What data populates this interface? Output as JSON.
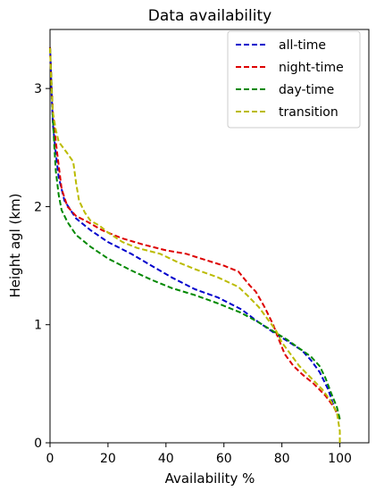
{
  "chart_data": {
    "type": "line",
    "title": "Data availability",
    "xlabel": "Availability %",
    "ylabel": "Height agl (km)",
    "xlim": [
      0,
      110
    ],
    "ylim": [
      0,
      3.5
    ],
    "xticks": [
      0,
      20,
      40,
      60,
      80,
      100
    ],
    "yticks": [
      0,
      1,
      2,
      3
    ],
    "grid": false,
    "legend_position": "top-right",
    "series": [
      {
        "name": "all-time",
        "color": "#0000cc",
        "points": [
          [
            100,
            0.2
          ],
          [
            98,
            0.3
          ],
          [
            96,
            0.45
          ],
          [
            93,
            0.6
          ],
          [
            90,
            0.7
          ],
          [
            87,
            0.78
          ],
          [
            82,
            0.86
          ],
          [
            78,
            0.92
          ],
          [
            72,
            1.02
          ],
          [
            66,
            1.13
          ],
          [
            58,
            1.23
          ],
          [
            50,
            1.3
          ],
          [
            42,
            1.4
          ],
          [
            35,
            1.5
          ],
          [
            28,
            1.6
          ],
          [
            20,
            1.7
          ],
          [
            14,
            1.8
          ],
          [
            9,
            1.9
          ],
          [
            5,
            2.05
          ],
          [
            3,
            2.25
          ],
          [
            2,
            2.45
          ],
          [
            1,
            2.7
          ],
          [
            0.5,
            3.0
          ],
          [
            0.2,
            3.25
          ],
          [
            0,
            3.35
          ]
        ]
      },
      {
        "name": "night-time",
        "color": "#dd0000",
        "points": [
          [
            100,
            0.2
          ],
          [
            98,
            0.3
          ],
          [
            95,
            0.4
          ],
          [
            91,
            0.5
          ],
          [
            87,
            0.58
          ],
          [
            84,
            0.65
          ],
          [
            81,
            0.75
          ],
          [
            79,
            0.87
          ],
          [
            77,
            1.0
          ],
          [
            74,
            1.15
          ],
          [
            71,
            1.28
          ],
          [
            69,
            1.33
          ],
          [
            65,
            1.45
          ],
          [
            60,
            1.5
          ],
          [
            52,
            1.56
          ],
          [
            47,
            1.6
          ],
          [
            40,
            1.63
          ],
          [
            32,
            1.68
          ],
          [
            25,
            1.73
          ],
          [
            18,
            1.8
          ],
          [
            13,
            1.87
          ],
          [
            9,
            1.92
          ],
          [
            6,
            2.0
          ],
          [
            4,
            2.15
          ],
          [
            3,
            2.35
          ],
          [
            2,
            2.55
          ],
          [
            1,
            2.8
          ],
          [
            0.5,
            3.05
          ],
          [
            0,
            3.35
          ]
        ]
      },
      {
        "name": "day-time",
        "color": "#008800",
        "points": [
          [
            100,
            0.2
          ],
          [
            99,
            0.3
          ],
          [
            97,
            0.42
          ],
          [
            95,
            0.55
          ],
          [
            93,
            0.65
          ],
          [
            90,
            0.73
          ],
          [
            86,
            0.8
          ],
          [
            82,
            0.87
          ],
          [
            78,
            0.93
          ],
          [
            72,
            1.02
          ],
          [
            66,
            1.1
          ],
          [
            58,
            1.18
          ],
          [
            50,
            1.25
          ],
          [
            42,
            1.31
          ],
          [
            35,
            1.38
          ],
          [
            28,
            1.46
          ],
          [
            20,
            1.56
          ],
          [
            14,
            1.66
          ],
          [
            9,
            1.76
          ],
          [
            6,
            1.87
          ],
          [
            4,
            1.97
          ],
          [
            3,
            2.1
          ],
          [
            2,
            2.3
          ],
          [
            1.5,
            2.5
          ],
          [
            1,
            2.75
          ],
          [
            0.5,
            3.05
          ],
          [
            0,
            3.35
          ]
        ]
      },
      {
        "name": "transition",
        "color": "#bbbb00",
        "points": [
          [
            100,
            0.0
          ],
          [
            100,
            0.1
          ],
          [
            99,
            0.25
          ],
          [
            97,
            0.35
          ],
          [
            94,
            0.45
          ],
          [
            90,
            0.55
          ],
          [
            86,
            0.65
          ],
          [
            83,
            0.75
          ],
          [
            80,
            0.85
          ],
          [
            78,
            0.95
          ],
          [
            75,
            1.05
          ],
          [
            72,
            1.15
          ],
          [
            68,
            1.25
          ],
          [
            65,
            1.32
          ],
          [
            58,
            1.4
          ],
          [
            50,
            1.47
          ],
          [
            44,
            1.53
          ],
          [
            38,
            1.6
          ],
          [
            30,
            1.65
          ],
          [
            25,
            1.7
          ],
          [
            20,
            1.78
          ],
          [
            17,
            1.84
          ],
          [
            14,
            1.88
          ],
          [
            12,
            1.95
          ],
          [
            10,
            2.05
          ],
          [
            9,
            2.2
          ],
          [
            8,
            2.38
          ],
          [
            6,
            2.45
          ],
          [
            3,
            2.55
          ],
          [
            2,
            2.65
          ],
          [
            1,
            2.8
          ],
          [
            0.5,
            3.0
          ],
          [
            0,
            3.35
          ]
        ]
      }
    ]
  }
}
